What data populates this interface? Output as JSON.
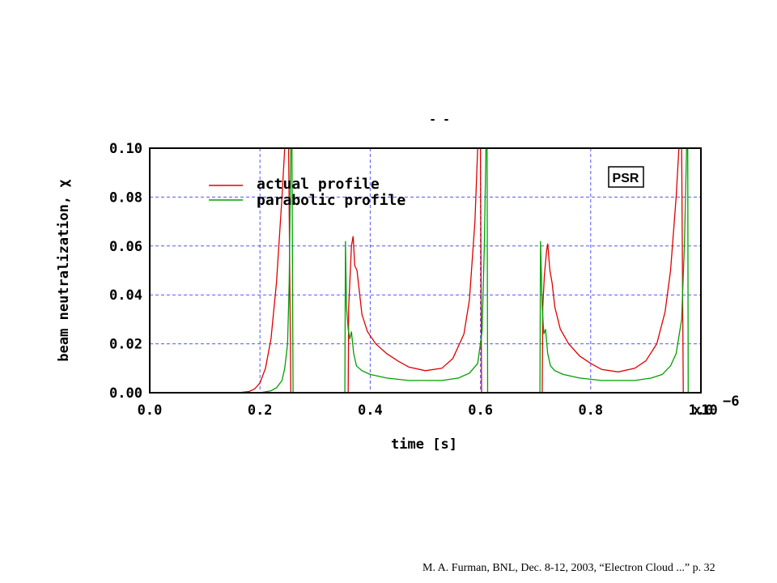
{
  "chart_data": {
    "type": "line",
    "title": "- -",
    "xlabel": "time [s]",
    "ylabel": "beam neutralization, χ",
    "x_multiplier_label": "x10",
    "x_multiplier_exp": "−6",
    "xlim": [
      0.0,
      1.0
    ],
    "ylim": [
      0.0,
      0.1
    ],
    "x_ticks": [
      0.0,
      0.2,
      0.4,
      0.6,
      0.8,
      1.0
    ],
    "x_tick_labels": [
      "0.0",
      "0.2",
      "0.4",
      "0.6",
      "0.8",
      "1.0"
    ],
    "y_ticks": [
      0.0,
      0.02,
      0.04,
      0.06,
      0.08,
      0.1
    ],
    "y_tick_labels": [
      "0.00",
      "0.02",
      "0.04",
      "0.06",
      "0.08",
      "0.10"
    ],
    "grid": true,
    "legend_position": "top-left",
    "annotation": "PSR",
    "series": [
      {
        "name": "actual profile",
        "color": "#e00000",
        "points": [
          [
            0.0,
            0
          ],
          [
            0.16,
            0
          ],
          [
            0.18,
            0.0005
          ],
          [
            0.19,
            0.0015
          ],
          [
            0.2,
            0.004
          ],
          [
            0.21,
            0.01
          ],
          [
            0.22,
            0.022
          ],
          [
            0.23,
            0.045
          ],
          [
            0.24,
            0.08
          ],
          [
            0.245,
            0.1
          ],
          [
            0.25,
            0.1
          ],
          [
            0.252,
            0.1
          ],
          [
            0.256,
            0.0
          ],
          [
            0.36,
            0.0
          ],
          [
            0.361,
            0.035
          ],
          [
            0.363,
            0.045
          ],
          [
            0.366,
            0.06
          ],
          [
            0.369,
            0.064
          ],
          [
            0.372,
            0.052
          ],
          [
            0.376,
            0.05
          ],
          [
            0.38,
            0.042
          ],
          [
            0.385,
            0.032
          ],
          [
            0.395,
            0.025
          ],
          [
            0.41,
            0.02
          ],
          [
            0.43,
            0.016
          ],
          [
            0.45,
            0.013
          ],
          [
            0.47,
            0.0105
          ],
          [
            0.5,
            0.009
          ],
          [
            0.53,
            0.01
          ],
          [
            0.55,
            0.014
          ],
          [
            0.57,
            0.024
          ],
          [
            0.58,
            0.038
          ],
          [
            0.59,
            0.07
          ],
          [
            0.595,
            0.1
          ],
          [
            0.6,
            0.1
          ],
          [
            0.602,
            0.0
          ],
          [
            0.712,
            0.0
          ],
          [
            0.713,
            0.035
          ],
          [
            0.716,
            0.048
          ],
          [
            0.72,
            0.058
          ],
          [
            0.722,
            0.061
          ],
          [
            0.726,
            0.05
          ],
          [
            0.73,
            0.045
          ],
          [
            0.735,
            0.035
          ],
          [
            0.745,
            0.026
          ],
          [
            0.76,
            0.02
          ],
          [
            0.78,
            0.015
          ],
          [
            0.8,
            0.012
          ],
          [
            0.82,
            0.0095
          ],
          [
            0.85,
            0.0085
          ],
          [
            0.88,
            0.01
          ],
          [
            0.9,
            0.013
          ],
          [
            0.92,
            0.02
          ],
          [
            0.935,
            0.033
          ],
          [
            0.945,
            0.05
          ],
          [
            0.955,
            0.08
          ],
          [
            0.96,
            0.1
          ],
          [
            0.965,
            0.1
          ],
          [
            0.968,
            0.0
          ],
          [
            1.0,
            0.0
          ]
        ]
      },
      {
        "name": "parabolic profile",
        "color": "#00a000",
        "points": [
          [
            0.0,
            0
          ],
          [
            0.2,
            0
          ],
          [
            0.22,
            0.0008
          ],
          [
            0.23,
            0.002
          ],
          [
            0.24,
            0.005
          ],
          [
            0.245,
            0.01
          ],
          [
            0.25,
            0.02
          ],
          [
            0.253,
            0.045
          ],
          [
            0.256,
            0.1
          ],
          [
            0.258,
            0.1
          ],
          [
            0.26,
            0.0
          ],
          [
            0.354,
            0.0
          ],
          [
            0.355,
            0.062
          ],
          [
            0.357,
            0.035
          ],
          [
            0.36,
            0.026
          ],
          [
            0.363,
            0.022
          ],
          [
            0.366,
            0.025
          ],
          [
            0.37,
            0.016
          ],
          [
            0.375,
            0.011
          ],
          [
            0.385,
            0.009
          ],
          [
            0.4,
            0.0075
          ],
          [
            0.43,
            0.006
          ],
          [
            0.47,
            0.005
          ],
          [
            0.5,
            0.005
          ],
          [
            0.53,
            0.005
          ],
          [
            0.56,
            0.006
          ],
          [
            0.58,
            0.008
          ],
          [
            0.595,
            0.012
          ],
          [
            0.603,
            0.025
          ],
          [
            0.607,
            0.06
          ],
          [
            0.61,
            0.1
          ],
          [
            0.612,
            0.1
          ],
          [
            0.613,
            0.0
          ],
          [
            0.708,
            0.0
          ],
          [
            0.709,
            0.062
          ],
          [
            0.712,
            0.035
          ],
          [
            0.715,
            0.024
          ],
          [
            0.718,
            0.026
          ],
          [
            0.722,
            0.016
          ],
          [
            0.727,
            0.011
          ],
          [
            0.735,
            0.009
          ],
          [
            0.75,
            0.0075
          ],
          [
            0.78,
            0.006
          ],
          [
            0.82,
            0.005
          ],
          [
            0.85,
            0.005
          ],
          [
            0.88,
            0.005
          ],
          [
            0.91,
            0.006
          ],
          [
            0.93,
            0.0075
          ],
          [
            0.945,
            0.011
          ],
          [
            0.955,
            0.016
          ],
          [
            0.965,
            0.03
          ],
          [
            0.97,
            0.06
          ],
          [
            0.974,
            0.1
          ],
          [
            0.976,
            0.1
          ],
          [
            0.977,
            0.0
          ],
          [
            1.0,
            0.0
          ]
        ]
      }
    ]
  },
  "footer": {
    "citation": "M. A. Furman, BNL, Dec. 8-12, 2003, “Electron Cloud ...”  p. 32"
  }
}
